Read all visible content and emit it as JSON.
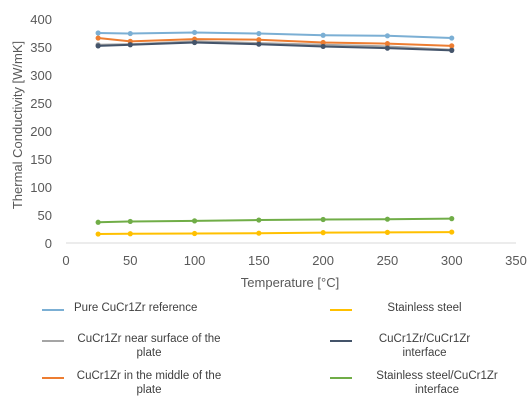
{
  "chart_data": {
    "type": "line",
    "title": "",
    "xlabel": "Temperature [°C]",
    "ylabel": "Thermal Conductivity [W/mK]",
    "xlim": [
      0,
      350
    ],
    "ylim": [
      0,
      400
    ],
    "xticks": [
      "0",
      "50",
      "100",
      "150",
      "200",
      "250",
      "300",
      "350"
    ],
    "yticks": [
      "0",
      "50",
      "100",
      "150",
      "200",
      "250",
      "300",
      "350",
      "400"
    ],
    "grid": false,
    "legend_position": "bottom",
    "x": [
      25,
      50,
      100,
      150,
      200,
      250,
      300
    ],
    "series": [
      {
        "name": "Pure CuCr1Zr reference",
        "color": "#7BAFD4",
        "values": [
          375,
          374,
          376,
          374,
          371,
          370,
          366
        ]
      },
      {
        "name": "CuCr1Zr near surface of the plate",
        "color": "#A5A5A5",
        "values": [
          354,
          355,
          360,
          357,
          354,
          351,
          345
        ]
      },
      {
        "name": "CuCr1Zr in the middle of the plate",
        "color": "#ED7D31",
        "values": [
          366,
          360,
          364,
          363,
          358,
          356,
          352
        ]
      },
      {
        "name": "Stainless steel",
        "color": "#FFC000",
        "values": [
          16,
          16.5,
          17,
          17.5,
          18.5,
          19,
          19.5
        ]
      },
      {
        "name": "CuCr1Zr/CuCr1Zr interface",
        "color": "#44546A",
        "values": [
          352,
          354,
          358,
          355,
          351,
          348,
          344
        ]
      },
      {
        "name": "Stainless steel/CuCr1Zr interface",
        "color": "#70AD47",
        "values": [
          37,
          38.5,
          39.5,
          41,
          42,
          42.5,
          43.5
        ]
      }
    ]
  }
}
